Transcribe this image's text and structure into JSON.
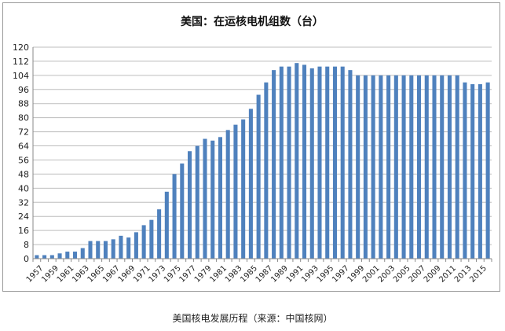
{
  "chart_data": {
    "type": "bar",
    "title": "美国：在运核电机组数（台）",
    "xlabel": "",
    "ylabel": "",
    "ylim": [
      0,
      120
    ],
    "yticks": [
      0,
      8,
      16,
      24,
      32,
      40,
      48,
      56,
      64,
      72,
      80,
      88,
      96,
      104,
      112,
      120
    ],
    "grid": true,
    "legend": "none",
    "bar_color": "#4f81bd",
    "categories": [
      "1957",
      "1958",
      "1959",
      "1960",
      "1961",
      "1962",
      "1963",
      "1964",
      "1965",
      "1966",
      "1967",
      "1968",
      "1969",
      "1970",
      "1971",
      "1972",
      "1973",
      "1974",
      "1975",
      "1976",
      "1977",
      "1978",
      "1979",
      "1980",
      "1981",
      "1982",
      "1983",
      "1984",
      "1985",
      "1986",
      "1987",
      "1988",
      "1989",
      "1990",
      "1991",
      "1992",
      "1993",
      "1994",
      "1995",
      "1996",
      "1997",
      "1998",
      "1999",
      "2000",
      "2001",
      "2002",
      "2003",
      "2004",
      "2005",
      "2006",
      "2007",
      "2008",
      "2009",
      "2010",
      "2011",
      "2012",
      "2013",
      "2014",
      "2015",
      "2016"
    ],
    "x_tick_labels": [
      "1957",
      "1959",
      "1961",
      "1963",
      "1965",
      "1967",
      "1969",
      "1971",
      "1973",
      "1975",
      "1977",
      "1979",
      "1981",
      "1983",
      "1985",
      "1987",
      "1989",
      "1991",
      "1993",
      "1995",
      "1997",
      "1999",
      "2001",
      "2003",
      "2005",
      "2007",
      "2009",
      "2011",
      "2013",
      "2015"
    ],
    "values": [
      2,
      2,
      2,
      3,
      4,
      4,
      6,
      10,
      10,
      10,
      11,
      13,
      12,
      15,
      19,
      22,
      28,
      38,
      48,
      54,
      61,
      64,
      68,
      67,
      69,
      73,
      76,
      79,
      85,
      93,
      100,
      107,
      109,
      109,
      111,
      110,
      108,
      109,
      109,
      109,
      109,
      107,
      104,
      104,
      104,
      104,
      104,
      104,
      104,
      104,
      104,
      104,
      104,
      104,
      104,
      104,
      100,
      99,
      99,
      100
    ]
  },
  "caption": "美国核电发展历程（来源：中国核网）"
}
